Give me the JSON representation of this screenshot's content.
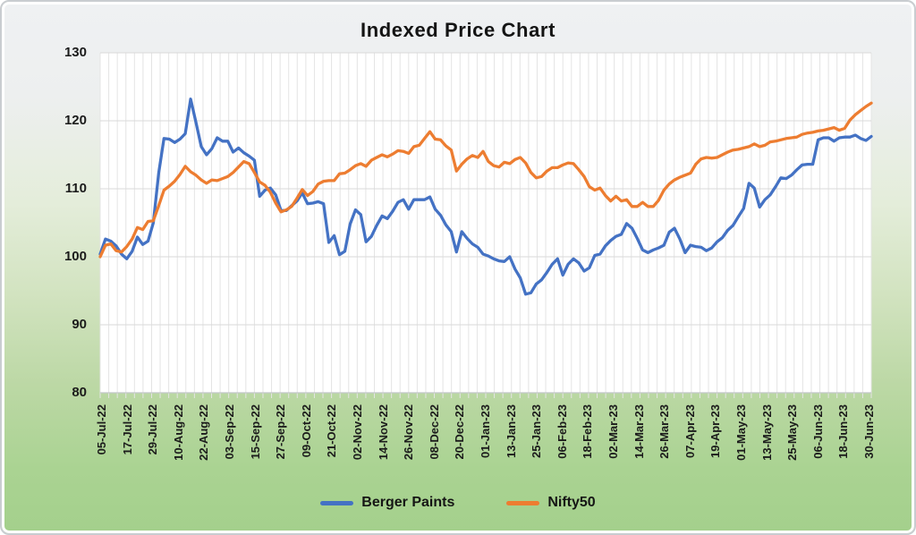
{
  "title": "Indexed Price Chart",
  "colors": {
    "berger_blue": "#4472C4",
    "nifty_orange": "#ED7D31",
    "grid_horizontal": "#d9d9d9",
    "grid_vertical": "#e4e4e4",
    "axis_line": "#c4c7c9",
    "plot_background": "#ffffff"
  },
  "legend": {
    "items": [
      {
        "label": "Berger Paints",
        "color": "#4472C4"
      },
      {
        "label": "Nifty50",
        "color": "#ED7D31"
      }
    ]
  },
  "chart_data": {
    "type": "line",
    "title": "Indexed Price Chart",
    "xlabel": "",
    "ylabel": "",
    "ylim": [
      80,
      130
    ],
    "y_ticks": [
      130,
      120,
      110,
      100,
      90,
      80
    ],
    "grid": {
      "horizontal": true,
      "vertical": true,
      "vertical_line_count": 91
    },
    "legend_position": "bottom-center",
    "x_note": "daily indexed prices (base 100 on 05-Jul-22), values sampled uniformly from 05-Jul-22 to 30-Jun-23",
    "x_tick_labels": [
      "05-Jul-22",
      "17-Jul-22",
      "29-Jul-22",
      "10-Aug-22",
      "22-Aug-22",
      "03-Sep-22",
      "15-Sep-22",
      "27-Sep-22",
      "09-Oct-22",
      "21-Oct-22",
      "02-Nov-22",
      "14-Nov-22",
      "26-Nov-22",
      "08-Dec-22",
      "20-Dec-22",
      "01-Jan-23",
      "13-Jan-23",
      "25-Jan-23",
      "06-Feb-23",
      "18-Feb-23",
      "02-Mar-23",
      "14-Mar-23",
      "26-Mar-23",
      "07-Apr-23",
      "19-Apr-23",
      "01-May-23",
      "13-May-23",
      "25-May-23",
      "06-Jun-23",
      "18-Jun-23",
      "30-Jun-23"
    ],
    "series": [
      {
        "name": "Berger Paints",
        "color": "#4472C4",
        "values": [
          100.4,
          102.6,
          102.3,
          101.6,
          100.4,
          99.7,
          100.8,
          102.9,
          101.8,
          102.3,
          105.0,
          112.3,
          117.4,
          117.3,
          116.8,
          117.3,
          118.1,
          123.2,
          119.8,
          116.2,
          115.0,
          115.9,
          117.5,
          117.0,
          117.0,
          115.4,
          116.0,
          115.3,
          114.8,
          114.2,
          108.9,
          109.8,
          110.1,
          109.1,
          106.8,
          106.8,
          107.5,
          108.2,
          109.4,
          107.8,
          107.9,
          108.1,
          107.8,
          102.1,
          103.1,
          100.3,
          100.8,
          104.8,
          106.9,
          106.2,
          102.2,
          103.0,
          104.6,
          106.0,
          105.6,
          106.7,
          108.0,
          108.4,
          107.0,
          108.4,
          108.4,
          108.4,
          108.8,
          107.0,
          106.1,
          104.7,
          103.7,
          100.7,
          103.7,
          102.7,
          101.9,
          101.4,
          100.4,
          100.1,
          99.7,
          99.4,
          99.3,
          100.0,
          98.2,
          96.9,
          94.5,
          94.7,
          96.0,
          96.6,
          97.7,
          98.9,
          99.7,
          97.3,
          98.9,
          99.7,
          99.1,
          97.9,
          98.4,
          100.2,
          100.4,
          101.6,
          102.4,
          103.0,
          103.3,
          104.9,
          104.2,
          102.7,
          101.0,
          100.6,
          101.0,
          101.3,
          101.7,
          103.6,
          104.2,
          102.6,
          100.6,
          101.7,
          101.5,
          101.4,
          100.9,
          101.3,
          102.2,
          102.8,
          103.9,
          104.6,
          105.9,
          107.1,
          110.8,
          110.1,
          107.3,
          108.4,
          109.1,
          110.3,
          111.6,
          111.5,
          112.0,
          112.8,
          113.5,
          113.6,
          113.6,
          117.2,
          117.5,
          117.5,
          117.0,
          117.5,
          117.6,
          117.6,
          117.9,
          117.4,
          117.1,
          117.7
        ]
      },
      {
        "name": "Nifty50",
        "color": "#ED7D31",
        "values": [
          100.0,
          101.7,
          101.9,
          100.9,
          100.7,
          101.5,
          102.6,
          104.3,
          104.0,
          105.2,
          105.3,
          107.5,
          109.8,
          110.4,
          111.1,
          112.1,
          113.3,
          112.5,
          112.0,
          111.3,
          110.8,
          111.3,
          111.2,
          111.5,
          111.8,
          112.4,
          113.2,
          114.0,
          113.7,
          112.4,
          111.0,
          110.5,
          109.5,
          107.9,
          106.6,
          106.9,
          107.4,
          108.6,
          109.9,
          109.0,
          109.6,
          110.7,
          111.1,
          111.2,
          111.2,
          112.2,
          112.3,
          112.8,
          113.4,
          113.7,
          113.3,
          114.2,
          114.6,
          115.0,
          114.7,
          115.1,
          115.6,
          115.5,
          115.2,
          116.2,
          116.4,
          117.4,
          118.4,
          117.3,
          117.2,
          116.3,
          115.7,
          112.6,
          113.6,
          114.4,
          114.9,
          114.6,
          115.5,
          114.0,
          113.4,
          113.2,
          113.9,
          113.7,
          114.3,
          114.6,
          113.8,
          112.4,
          111.6,
          111.8,
          112.6,
          113.1,
          113.1,
          113.5,
          113.8,
          113.7,
          112.8,
          111.8,
          110.3,
          109.8,
          110.1,
          109.0,
          108.2,
          108.9,
          108.2,
          108.4,
          107.4,
          107.4,
          108.0,
          107.4,
          107.4,
          108.3,
          109.8,
          110.7,
          111.3,
          111.7,
          112.0,
          112.3,
          113.6,
          114.4,
          114.6,
          114.5,
          114.6,
          115.0,
          115.4,
          115.7,
          115.8,
          116.0,
          116.2,
          116.6,
          116.2,
          116.4,
          116.9,
          117.0,
          117.2,
          117.4,
          117.5,
          117.6,
          118.0,
          118.2,
          118.3,
          118.5,
          118.6,
          118.8,
          119.0,
          118.6,
          118.9,
          120.1,
          120.9,
          121.5,
          122.1,
          122.6
        ]
      }
    ]
  }
}
